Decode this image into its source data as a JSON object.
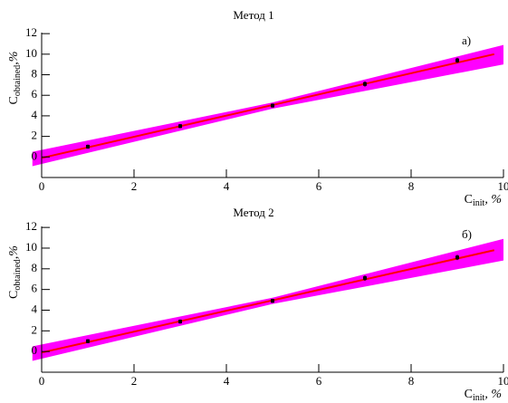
{
  "chart_data": [
    {
      "type": "scatter",
      "title": "Метод 1",
      "annotation": "а)",
      "x_label": {
        "main": "C",
        "sub": "init",
        "suffix": ", %"
      },
      "y_label": {
        "main": "C",
        "sub": "obtained",
        "suffix": ",%"
      },
      "xlim": [
        0,
        10
      ],
      "ylim": [
        -2,
        12.1
      ],
      "xticks": [
        0,
        2,
        4,
        6,
        8,
        10
      ],
      "yticks": [
        0,
        2,
        4,
        6,
        8,
        10,
        12
      ],
      "points": {
        "x": [
          1,
          3,
          5,
          7,
          9
        ],
        "y": [
          1.0,
          3.0,
          5.0,
          7.1,
          9.4
        ],
        "err": [
          0.2,
          0.2,
          0.2,
          0.25,
          0.25
        ],
        "color": "#000000"
      },
      "fit": {
        "x": [
          0,
          9.8
        ],
        "y": [
          -0.1,
          10.0
        ],
        "color": "#ff0000"
      },
      "band": {
        "x": [
          -0.2,
          5,
          10
        ],
        "lower": [
          -0.9,
          4.7,
          9.0
        ],
        "upper": [
          0.5,
          5.3,
          10.9
        ],
        "color": "#ff00ff"
      }
    },
    {
      "type": "scatter",
      "title": "Метод 2",
      "annotation": "б)",
      "x_label": {
        "main": "C",
        "sub": "init",
        "suffix": ", %"
      },
      "y_label": {
        "main": "C",
        "sub": "obtained",
        "suffix": ",%"
      },
      "xlim": [
        0,
        10
      ],
      "ylim": [
        -2,
        12.1
      ],
      "xticks": [
        0,
        2,
        4,
        6,
        8,
        10
      ],
      "yticks": [
        0,
        2,
        4,
        6,
        8,
        10,
        12
      ],
      "points": {
        "x": [
          1,
          3,
          5,
          7,
          9
        ],
        "y": [
          1.0,
          2.9,
          4.9,
          7.1,
          9.1
        ],
        "err": [
          0.2,
          0.2,
          0.2,
          0.25,
          0.25
        ],
        "color": "#000000"
      },
      "fit": {
        "x": [
          0,
          9.8
        ],
        "y": [
          -0.1,
          9.8
        ],
        "color": "#ff0000"
      },
      "band": {
        "x": [
          -0.2,
          5,
          10
        ],
        "lower": [
          -0.9,
          4.6,
          8.8
        ],
        "upper": [
          0.5,
          5.2,
          10.9
        ],
        "color": "#ff00ff"
      }
    }
  ]
}
